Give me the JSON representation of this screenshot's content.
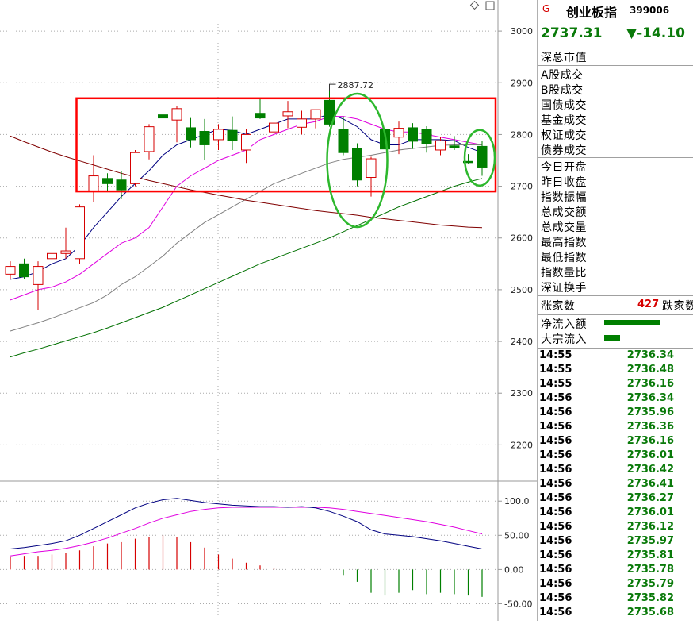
{
  "instrument": {
    "badge": "G",
    "name": "创业板指",
    "code": "399006",
    "price": "2737.31",
    "change": "▼-14.10"
  },
  "colors": {
    "up": "#d60000",
    "down": "#007f00",
    "ma5": "#000080",
    "ma10": "#e000e0",
    "ma20": "#808080",
    "ma60": "#007000",
    "ma_long": "#800000",
    "highlight_rect": "#ff0000",
    "highlight_ellipse": "#2db82d"
  },
  "labels": {
    "market_cap": "深总市值",
    "a_share": "A股成交",
    "b_share": "B股成交",
    "treasury": "国债成交",
    "fund": "基金成交",
    "warrant": "权证成交",
    "bond": "债券成交",
    "open": "今日开盘",
    "prev_close": "昨日收盘",
    "amplitude": "指数振幅",
    "total_amount": "总成交额",
    "total_volume": "总成交量",
    "high": "最高指数",
    "low": "最低指数",
    "vol_ratio": "指数量比",
    "turnover": "深证换手",
    "advancers": "涨家数",
    "advancers_count": "427",
    "decliners": "跌家数",
    "net_inflow": "净流入额",
    "block_inflow": "大宗流入"
  },
  "ticks": [
    {
      "time": "14:55",
      "value": "2736.34"
    },
    {
      "time": "14:55",
      "value": "2736.48"
    },
    {
      "time": "14:55",
      "value": "2736.16"
    },
    {
      "time": "14:56",
      "value": "2736.34"
    },
    {
      "time": "14:56",
      "value": "2735.96"
    },
    {
      "time": "14:56",
      "value": "2736.36"
    },
    {
      "time": "14:56",
      "value": "2736.16"
    },
    {
      "time": "14:56",
      "value": "2736.01"
    },
    {
      "time": "14:56",
      "value": "2736.42"
    },
    {
      "time": "14:56",
      "value": "2736.41"
    },
    {
      "time": "14:56",
      "value": "2736.27"
    },
    {
      "time": "14:56",
      "value": "2736.01"
    },
    {
      "time": "14:56",
      "value": "2736.12"
    },
    {
      "time": "14:56",
      "value": "2735.97"
    },
    {
      "time": "14:56",
      "value": "2735.81"
    },
    {
      "time": "14:56",
      "value": "2735.78"
    },
    {
      "time": "14:56",
      "value": "2735.79"
    },
    {
      "time": "14:56",
      "value": "2735.82"
    },
    {
      "time": "14:56",
      "value": "2735.68"
    }
  ],
  "chart_data": [
    {
      "type": "candlestick",
      "price_axis_ticks": [
        "3000",
        "2900",
        "2800",
        "2700",
        "2600",
        "2500",
        "2400",
        "2300",
        "2200"
      ],
      "ylim": [
        2130,
        3060
      ],
      "annotation_high": "2887.72",
      "candles": [
        {
          "o": 2530,
          "h": 2555,
          "l": 2520,
          "c": 2545
        },
        {
          "o": 2550,
          "h": 2560,
          "l": 2520,
          "c": 2525
        },
        {
          "o": 2510,
          "h": 2555,
          "l": 2460,
          "c": 2545
        },
        {
          "o": 2560,
          "h": 2580,
          "l": 2540,
          "c": 2570
        },
        {
          "o": 2570,
          "h": 2620,
          "l": 2560,
          "c": 2575
        },
        {
          "o": 2560,
          "h": 2665,
          "l": 2550,
          "c": 2660
        },
        {
          "o": 2690,
          "h": 2760,
          "l": 2670,
          "c": 2720
        },
        {
          "o": 2715,
          "h": 2725,
          "l": 2690,
          "c": 2705
        },
        {
          "o": 2712,
          "h": 2730,
          "l": 2675,
          "c": 2693
        },
        {
          "o": 2705,
          "h": 2770,
          "l": 2700,
          "c": 2765
        },
        {
          "o": 2767,
          "h": 2820,
          "l": 2752,
          "c": 2815
        },
        {
          "o": 2838,
          "h": 2873,
          "l": 2830,
          "c": 2832
        },
        {
          "o": 2828,
          "h": 2855,
          "l": 2785,
          "c": 2850
        },
        {
          "o": 2813,
          "h": 2832,
          "l": 2775,
          "c": 2790
        },
        {
          "o": 2806,
          "h": 2830,
          "l": 2750,
          "c": 2780
        },
        {
          "o": 2790,
          "h": 2820,
          "l": 2770,
          "c": 2810
        },
        {
          "o": 2808,
          "h": 2835,
          "l": 2770,
          "c": 2788
        },
        {
          "o": 2770,
          "h": 2810,
          "l": 2745,
          "c": 2800
        },
        {
          "o": 2841,
          "h": 2870,
          "l": 2830,
          "c": 2832
        },
        {
          "o": 2805,
          "h": 2825,
          "l": 2770,
          "c": 2822
        },
        {
          "o": 2836,
          "h": 2865,
          "l": 2812,
          "c": 2844
        },
        {
          "o": 2814,
          "h": 2846,
          "l": 2800,
          "c": 2830
        },
        {
          "o": 2830,
          "h": 2847,
          "l": 2812,
          "c": 2848
        },
        {
          "o": 2866,
          "h": 2888,
          "l": 2815,
          "c": 2820
        },
        {
          "o": 2810,
          "h": 2835,
          "l": 2760,
          "c": 2765
        },
        {
          "o": 2773,
          "h": 2783,
          "l": 2700,
          "c": 2712
        },
        {
          "o": 2717,
          "h": 2757,
          "l": 2680,
          "c": 2753
        },
        {
          "o": 2810,
          "h": 2818,
          "l": 2770,
          "c": 2772
        },
        {
          "o": 2795,
          "h": 2825,
          "l": 2762,
          "c": 2812
        },
        {
          "o": 2813,
          "h": 2822,
          "l": 2772,
          "c": 2787
        },
        {
          "o": 2810,
          "h": 2816,
          "l": 2765,
          "c": 2782
        },
        {
          "o": 2770,
          "h": 2795,
          "l": 2760,
          "c": 2788
        },
        {
          "o": 2778,
          "h": 2797,
          "l": 2770,
          "c": 2774
        },
        {
          "o": 2748,
          "h": 2762,
          "l": 2744,
          "c": 2746
        },
        {
          "o": 2777,
          "h": 2788,
          "l": 2720,
          "c": 2737
        }
      ],
      "ma_lines": [
        {
          "name": "MA5",
          "color_key": "ma5",
          "values": [
            2520,
            2525,
            2535,
            2550,
            2560,
            2585,
            2620,
            2650,
            2680,
            2705,
            2730,
            2760,
            2780,
            2790,
            2800,
            2810,
            2808,
            2800,
            2810,
            2820,
            2830,
            2830,
            2830,
            2840,
            2830,
            2815,
            2790,
            2780,
            2780,
            2790,
            2790,
            2790,
            2788,
            2775,
            2765
          ]
        },
        {
          "name": "MA10",
          "color_key": "ma10",
          "values": [
            2480,
            2490,
            2500,
            2505,
            2515,
            2530,
            2550,
            2570,
            2590,
            2600,
            2620,
            2660,
            2700,
            2720,
            2735,
            2750,
            2760,
            2770,
            2790,
            2800,
            2810,
            2820,
            2825,
            2835,
            2835,
            2830,
            2820,
            2810,
            2805,
            2805,
            2800,
            2795,
            2790,
            2785,
            2780
          ]
        },
        {
          "name": "MA20",
          "color_key": "ma20",
          "values": [
            2420,
            2428,
            2436,
            2445,
            2455,
            2465,
            2475,
            2490,
            2510,
            2525,
            2545,
            2565,
            2590,
            2610,
            2630,
            2645,
            2660,
            2675,
            2690,
            2705,
            2715,
            2725,
            2735,
            2745,
            2752,
            2756,
            2760,
            2765,
            2770,
            2773,
            2776,
            2779,
            2780,
            2780,
            2780
          ]
        },
        {
          "name": "MA60",
          "color_key": "ma60",
          "values": [
            2370,
            2378,
            2385,
            2393,
            2401,
            2409,
            2417,
            2426,
            2436,
            2446,
            2456,
            2466,
            2478,
            2490,
            2502,
            2514,
            2526,
            2538,
            2550,
            2560,
            2570,
            2580,
            2590,
            2600,
            2612,
            2624,
            2636,
            2648,
            2660,
            2670,
            2680,
            2690,
            2700,
            2708,
            2715
          ]
        },
        {
          "name": "MA_LONG",
          "color_key": "ma_long",
          "values": [
            2797,
            2786,
            2776,
            2766,
            2757,
            2749,
            2741,
            2733,
            2725,
            2718,
            2711,
            2705,
            2699,
            2693,
            2688,
            2683,
            2678,
            2673,
            2669,
            2665,
            2661,
            2657,
            2653,
            2650,
            2647,
            2644,
            2640,
            2637,
            2634,
            2631,
            2628,
            2625,
            2623,
            2621,
            2620
          ]
        }
      ]
    },
    {
      "type": "macd",
      "axis_ticks": [
        "100.0",
        "50.00",
        "0.00",
        "-50.00"
      ],
      "ylim": [
        -75,
        120
      ],
      "dif": [
        30,
        32,
        35,
        38,
        42,
        50,
        60,
        70,
        80,
        90,
        97,
        102,
        104,
        101,
        98,
        96,
        94,
        93,
        92,
        92,
        91,
        92,
        90,
        85,
        78,
        70,
        58,
        52,
        50,
        48,
        45,
        42,
        38,
        34,
        30
      ],
      "dea": [
        20,
        23,
        26,
        28,
        31,
        35,
        40,
        46,
        53,
        60,
        68,
        75,
        80,
        85,
        88,
        90,
        91,
        91,
        91,
        91,
        91,
        91,
        91,
        90,
        88,
        85,
        82,
        79,
        76,
        73,
        70,
        66,
        62,
        57,
        52
      ],
      "hist": [
        18,
        20,
        20,
        22,
        24,
        28,
        34,
        38,
        40,
        45,
        48,
        50,
        48,
        40,
        32,
        22,
        16,
        10,
        6,
        2,
        0,
        0,
        0,
        0,
        -8,
        -18,
        -34,
        -38,
        -34,
        -30,
        -36,
        -34,
        -36,
        -38,
        -40
      ]
    }
  ]
}
